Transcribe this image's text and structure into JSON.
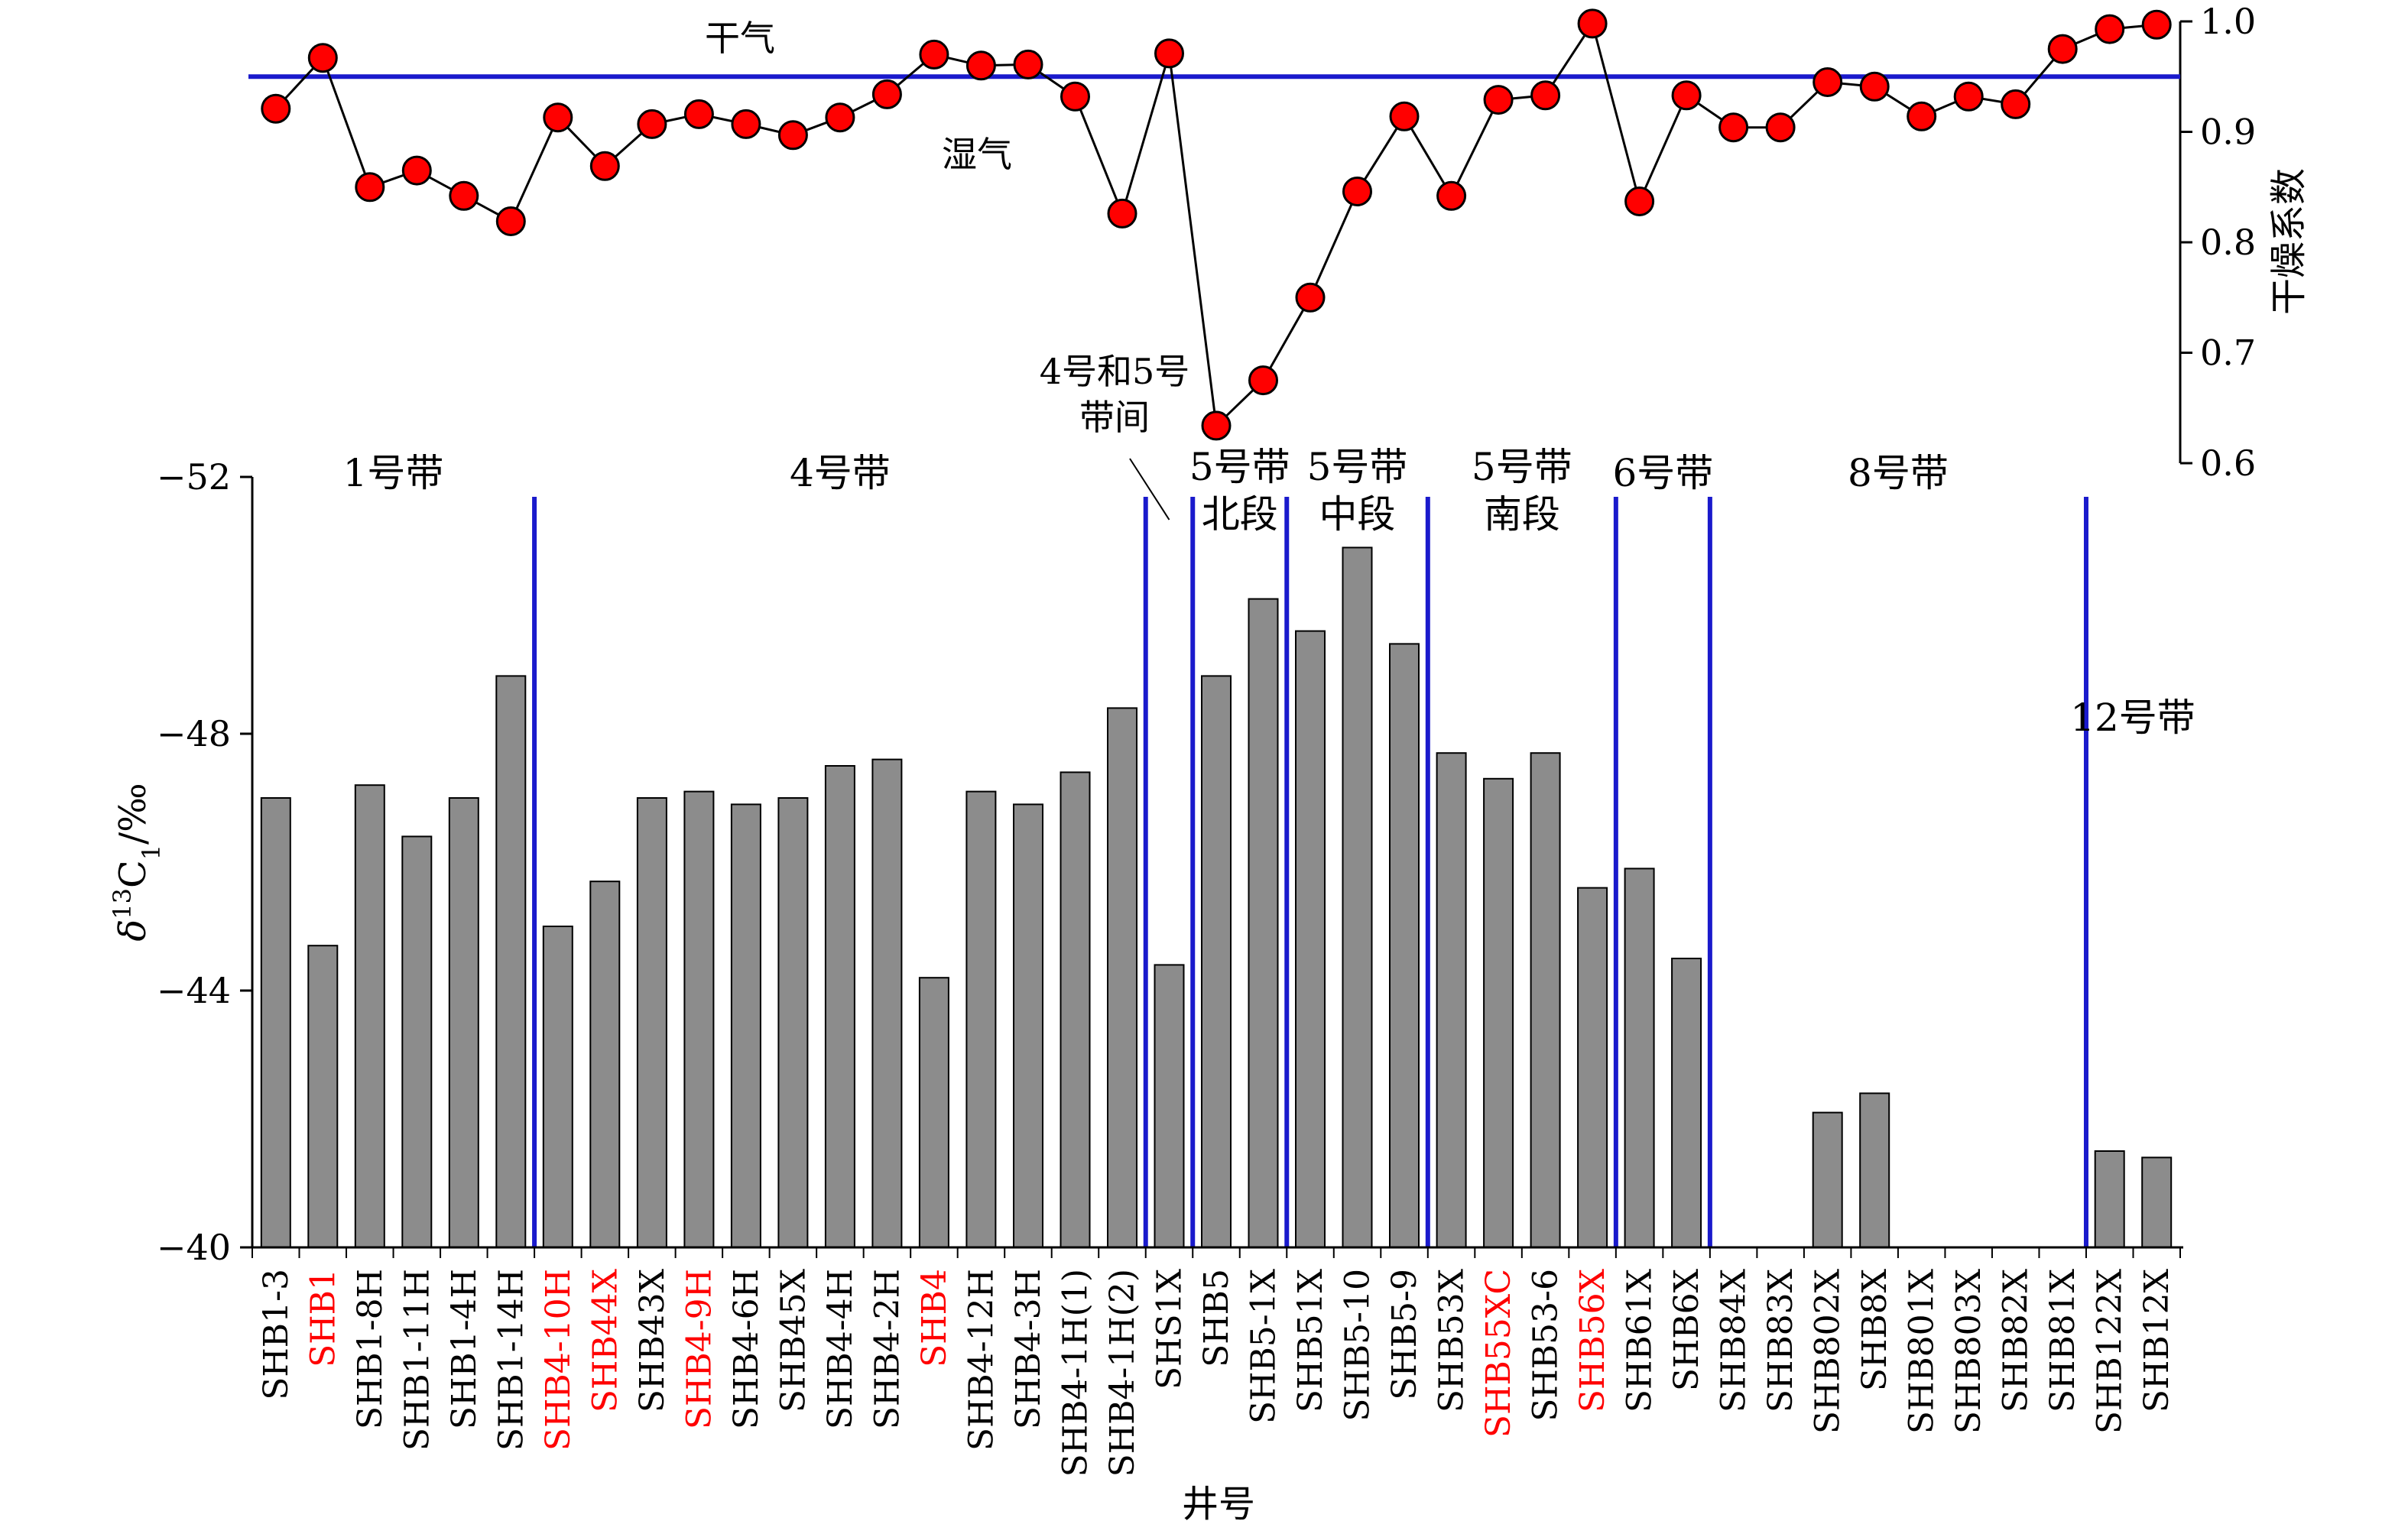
{
  "chart_data": {
    "type": "bar",
    "xlabel": "井号",
    "ylabel_main": "δ",
    "ylabel_sup": "13",
    "ylabel_base": "C",
    "ylabel_sub": "1",
    "ylabel_unit": "/‰",
    "y2label": "干燥系数",
    "ylim": [
      -52,
      -40
    ],
    "y_ticks": [
      "−52",
      "−48",
      "−44",
      "−40"
    ],
    "y_tick_values": [
      -52,
      -48,
      -44,
      -40
    ],
    "y2lim": [
      0.6,
      1.0
    ],
    "y2_ticks": [
      "0.6",
      "0.7",
      "0.8",
      "0.9",
      "1.0"
    ],
    "y2_tick_values": [
      0.6,
      0.7,
      0.8,
      0.9,
      1.0
    ],
    "categories": [
      "SHB1-3",
      "SHB1",
      "SHB1-8H",
      "SHB1-11H",
      "SHB1-4H",
      "SHB1-14H",
      "SHB4-10H",
      "SHB44X",
      "SHB43X",
      "SHB4-9H",
      "SHB4-6H",
      "SHB45X",
      "SHB4-4H",
      "SHB4-2H",
      "SHB4",
      "SHB4-12H",
      "SHB4-3H",
      "SHB4-1H(1)",
      "SHB4-1H(2)",
      "SHS1X",
      "SHB5",
      "SHB5-1X",
      "SHB51X",
      "SHB5-10",
      "SHB5-9",
      "SHB53X",
      "SHB55XC",
      "SHB53-6",
      "SHB56X",
      "SHB61X",
      "SHB6X",
      "SHB84X",
      "SHB83X",
      "SHB802X",
      "SHB8X",
      "SHB801X",
      "SHB803X",
      "SHB82X",
      "SHB81X",
      "SHB122X",
      "SHB12X"
    ],
    "highlighted_categories": [
      "SHB1",
      "SHB4-10H",
      "SHB44X",
      "SHB4-9H",
      "SHB4",
      "SHB55XC",
      "SHB56X"
    ],
    "series": [
      {
        "type": "bar",
        "axis": "left",
        "values": [
          -47.0,
          -44.7,
          -47.2,
          -46.4,
          -47.0,
          -48.9,
          -45.0,
          -45.7,
          -47.0,
          -47.1,
          -46.9,
          -47.0,
          -47.5,
          -47.6,
          -44.2,
          -47.1,
          -46.9,
          -47.4,
          -48.4,
          -44.4,
          -48.9,
          -50.1,
          -49.6,
          -50.9,
          -49.4,
          -47.7,
          -47.3,
          -47.7,
          -45.6,
          -45.9,
          -44.5,
          null,
          null,
          -42.1,
          -42.4,
          null,
          null,
          null,
          null,
          -41.5,
          -41.4
        ]
      },
      {
        "type": "line",
        "axis": "right",
        "values": [
          0.921,
          0.967,
          0.85,
          0.865,
          0.842,
          0.819,
          0.913,
          0.869,
          0.907,
          0.916,
          0.907,
          0.897,
          0.913,
          0.934,
          0.97,
          0.96,
          0.961,
          0.932,
          0.826,
          0.971,
          0.634,
          0.675,
          0.75,
          0.846,
          0.914,
          0.842,
          0.929,
          0.933,
          0.998,
          0.837,
          0.933,
          0.904,
          0.904,
          0.945,
          0.941,
          0.914,
          0.932,
          0.925,
          0.975,
          0.993,
          0.997
        ]
      }
    ],
    "dry_wet_line": 0.95,
    "dry_label": "干气",
    "wet_label": "湿气",
    "zone_dividers_after": [
      6,
      19,
      20,
      22,
      25,
      29,
      31,
      39
    ],
    "zones": [
      {
        "label": "1号带",
        "start": 1,
        "end": 6
      },
      {
        "label": "4号带",
        "start": 7,
        "end": 19
      },
      {
        "label": "5号带",
        "label2": "北段",
        "start": 21,
        "end": 22
      },
      {
        "label": "5号带",
        "label2": "中段",
        "start": 23,
        "end": 25
      },
      {
        "label": "5号带",
        "label2": "南段",
        "start": 26,
        "end": 29
      },
      {
        "label": "6号带",
        "start": 30,
        "end": 31
      },
      {
        "label": "8号带",
        "start": 32,
        "end": 39
      }
    ],
    "between_zone_label_1": "4号和5号",
    "between_zone_label_2": "带间",
    "zone12_label": "12号带",
    "colors": {
      "bar_fill": "#8c8c8c",
      "marker_fill": "#ff0000",
      "divider": "#1a1acc",
      "highlight_text": "#ff0000"
    }
  }
}
